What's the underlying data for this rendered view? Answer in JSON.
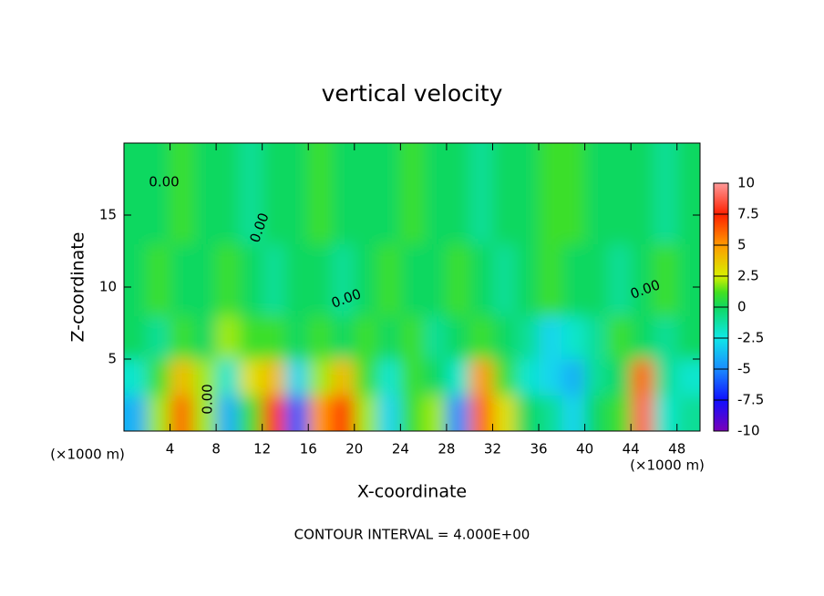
{
  "chart_data": {
    "type": "contour",
    "title": "vertical velocity",
    "x_label": "X-coordinate",
    "y_label": "Z-coordinate",
    "x_unit": "(×1000 m)",
    "footer": "CONTOUR INTERVAL = 4.000E+00",
    "contour_labels": [
      "0.00",
      "0.00",
      "0.00",
      "0.00",
      "0.00"
    ],
    "xlim": [
      0,
      50
    ],
    "ylim": [
      0,
      20
    ],
    "xticks": [
      4,
      8,
      12,
      16,
      20,
      24,
      28,
      32,
      36,
      40,
      44,
      48
    ],
    "yticks": [
      5,
      10,
      15
    ],
    "x": [
      1,
      3,
      5,
      7,
      9,
      11,
      13,
      15,
      17,
      19,
      21,
      23,
      25,
      27,
      29,
      31,
      33,
      35,
      37,
      39,
      41,
      43,
      45,
      47,
      49
    ],
    "z": [
      1.5,
      3.5,
      6,
      10,
      16
    ],
    "z_edges": [
      0,
      2.5,
      5,
      8,
      13,
      20
    ],
    "field": [
      [
        -4,
        2,
        6,
        2,
        -4,
        1,
        7,
        -6,
        5,
        7,
        2,
        -3,
        1,
        2,
        -5,
        6,
        3,
        0,
        -1,
        -3,
        0,
        1,
        9,
        -2,
        -1
      ],
      [
        -2,
        1,
        4,
        2,
        -2,
        3,
        4,
        -3,
        2,
        4,
        1,
        -2,
        1,
        0,
        -2,
        5,
        1,
        -2,
        -3,
        -4,
        -1,
        0,
        6,
        -1,
        -2
      ],
      [
        0,
        -1,
        1,
        0,
        2,
        1,
        1,
        0,
        1,
        0,
        1,
        0,
        1,
        -1,
        0,
        1,
        0,
        -1,
        -3,
        -2,
        -1,
        1,
        0,
        -1,
        0
      ],
      [
        0,
        1,
        0,
        0,
        1,
        0,
        -1,
        0,
        0,
        -1,
        0,
        1,
        0,
        0,
        1,
        0,
        -1,
        0,
        1,
        0,
        0,
        -1,
        0,
        1,
        0
      ],
      [
        0,
        0,
        1,
        0,
        0,
        -1,
        0,
        0,
        1,
        0,
        0,
        0,
        1,
        0,
        0,
        -1,
        0,
        0,
        1,
        1,
        0,
        0,
        0,
        -1,
        0
      ]
    ],
    "colorbar_lim": [
      -10,
      10
    ],
    "colorbar_ticks": [
      10,
      7.5,
      5,
      2.5,
      0,
      -2.5,
      -5,
      -7.5,
      -10
    ],
    "colorscale": [
      [
        -10,
        "#7a00b8"
      ],
      [
        -7.5,
        "#1010ff"
      ],
      [
        -5,
        "#1a8cff"
      ],
      [
        -2.5,
        "#10e8e8"
      ],
      [
        0,
        "#10d860"
      ],
      [
        1.2,
        "#44e020"
      ],
      [
        2.5,
        "#d8f000"
      ],
      [
        5,
        "#ff9a00"
      ],
      [
        7.5,
        "#ff2000"
      ],
      [
        10,
        "#ff9a9a"
      ]
    ]
  }
}
